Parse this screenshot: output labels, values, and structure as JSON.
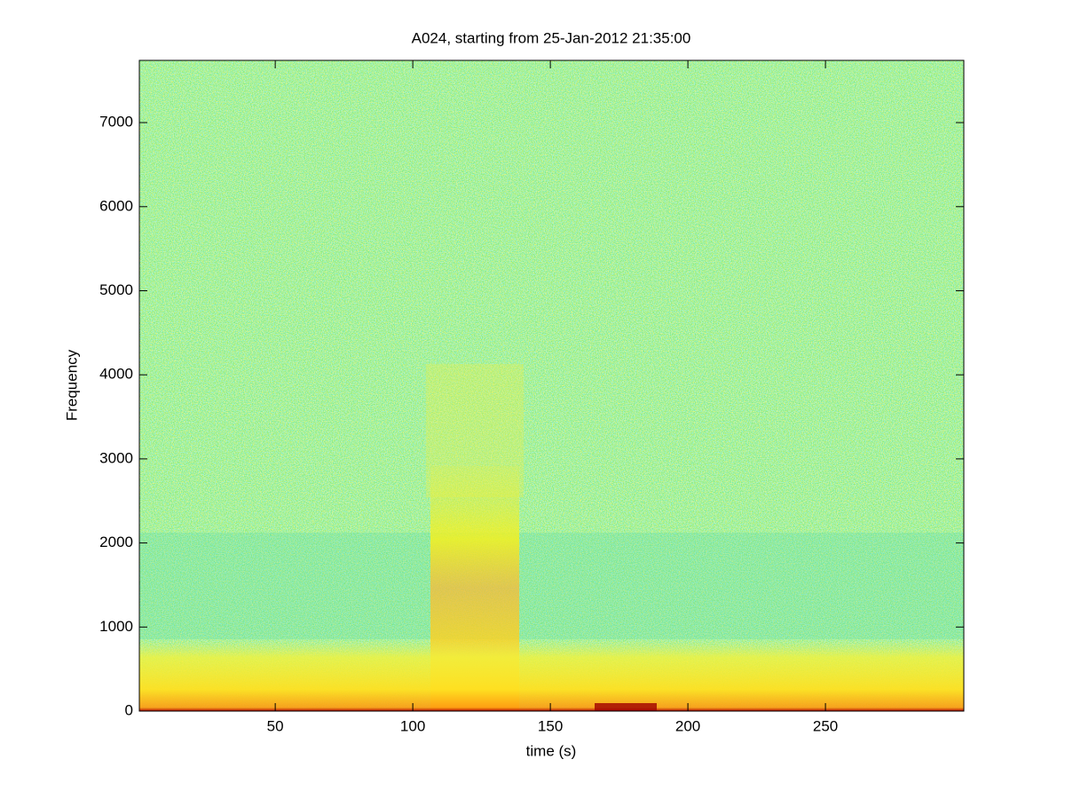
{
  "chart_data": {
    "type": "spectrogram",
    "title": "A024, starting from 25-Jan-2012 21:35:00",
    "x_label": "time (s)",
    "y_label": "Frequency",
    "xlim": [
      0.6,
      300.3
    ],
    "ylim": [
      0,
      7740
    ],
    "xticks": [
      50,
      100,
      150,
      200,
      250
    ],
    "yticks": [
      0,
      1000,
      2000,
      3000,
      4000,
      5000,
      6000,
      7000
    ]
  }
}
